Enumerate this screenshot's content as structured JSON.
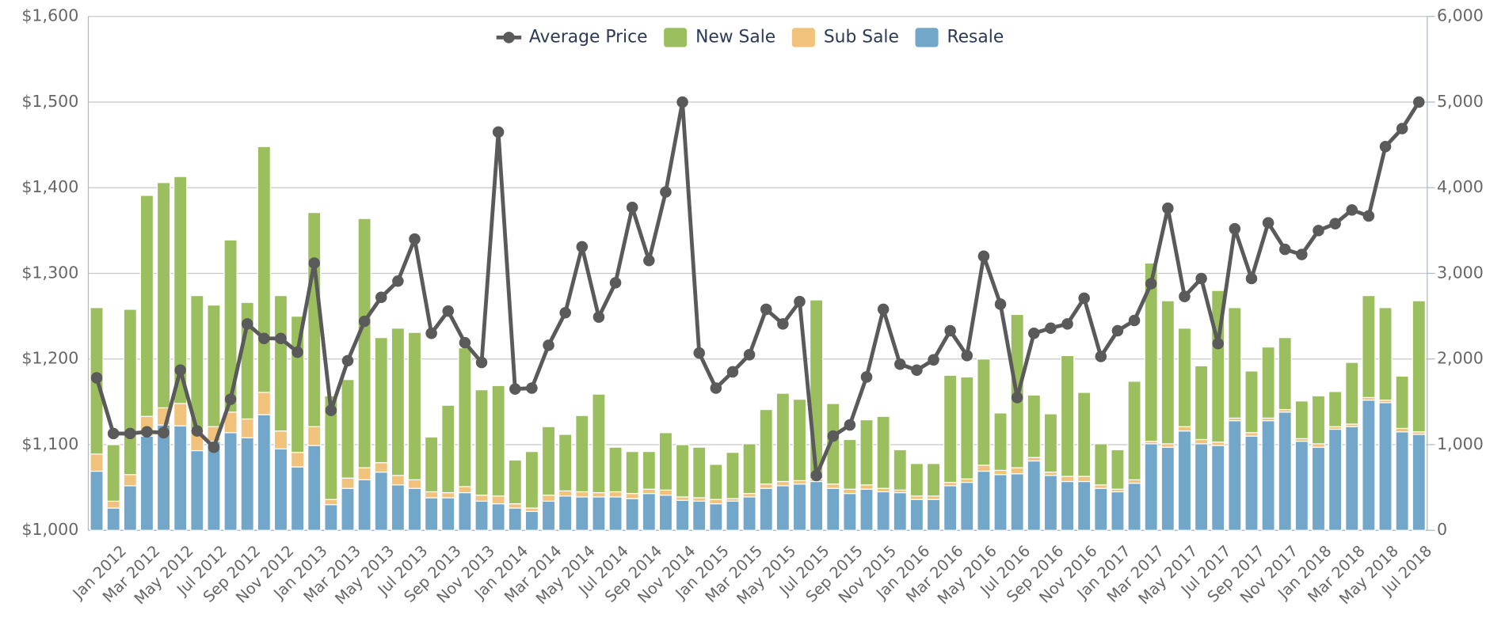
{
  "chart_data": {
    "type": "bar",
    "stacked": true,
    "grid": true,
    "legend": "top",
    "categories": [
      null,
      "Jan 2012",
      null,
      "Mar 2012",
      null,
      "May 2012",
      null,
      "Jul 2012",
      null,
      "Sep 2012",
      null,
      "Nov 2012",
      null,
      "Jan 2013",
      null,
      "Mar 2013",
      null,
      "May 2013",
      null,
      "Jul 2013",
      null,
      "Sep 2013",
      null,
      "Nov 2013",
      null,
      "Jan 2014",
      null,
      "Mar 2014",
      null,
      "May 2014",
      null,
      "Jul 2014",
      null,
      "Sep 2014",
      null,
      "Nov 2014",
      null,
      "Jan 2015",
      null,
      "Mar 2015",
      null,
      "May 2015",
      null,
      "Jul 2015",
      null,
      "Sep 2015",
      null,
      "Nov 2015",
      null,
      "Jan 2016",
      null,
      "Mar 2016",
      null,
      "May 2016",
      null,
      "Jul 2016",
      null,
      "Sep 2016",
      null,
      "Nov 2016",
      null,
      "Jan 2017",
      null,
      "Mar 2017",
      null,
      "May 2017",
      null,
      "Jul 2017",
      null,
      "Sep 2017",
      null,
      "Nov 2017",
      null,
      "Jan 2018",
      null,
      "Mar 2018",
      null,
      "May 2018",
      null,
      "Jul 2018"
    ],
    "ylim": [
      1000,
      1600
    ],
    "yticks": [
      {
        "value": 1000,
        "label": "$1,000"
      },
      {
        "value": 1100,
        "label": "$1,100"
      },
      {
        "value": 1200,
        "label": "$1,200"
      },
      {
        "value": 1300,
        "label": "$1,300"
      },
      {
        "value": 1400,
        "label": "$1,400"
      },
      {
        "value": 1500,
        "label": "$1,500"
      },
      {
        "value": 1600,
        "label": "$1,600"
      }
    ],
    "y2lim": [
      0,
      6000
    ],
    "y2ticks": [
      0,
      {
        "value": 1000,
        "label": "1,000"
      },
      {
        "value": 2000,
        "label": "2,000"
      },
      {
        "value": 3000,
        "label": "3,000"
      },
      {
        "value": 4000,
        "label": "4,000"
      },
      {
        "value": 5000,
        "label": "5,000"
      },
      {
        "value": 6000,
        "label": "6,000"
      }
    ],
    "series": [
      {
        "name": "Average Price",
        "type": "line",
        "axis": "y",
        "color": "#5a5a5a",
        "values": [
          1178,
          1113,
          1113,
          1115,
          1114,
          1187,
          1116,
          1097,
          1153,
          1241,
          1224,
          1224,
          1208,
          1312,
          1140,
          1198,
          1244,
          1272,
          1291,
          1340,
          1230,
          1256,
          1219,
          1196,
          1465,
          1165,
          1166,
          1216,
          1254,
          1331,
          1249,
          1289,
          1377,
          1315,
          1395,
          1500,
          1207,
          1166,
          1185,
          1205,
          1258,
          1241,
          1267,
          1064,
          1110,
          1123,
          1179,
          1258,
          1194,
          1187,
          1199,
          1233,
          1204,
          1320,
          1264,
          1155,
          1230,
          1236,
          1241,
          1271,
          1203,
          1233,
          1245,
          1288,
          1376,
          1273,
          1294,
          1218,
          1352,
          1294,
          1359,
          1328,
          1322,
          1350,
          1358,
          1374,
          1367,
          1448,
          1469,
          1500
        ]
      },
      {
        "name": "New Sale",
        "type": "bar",
        "axis": "y2",
        "color": "#9bbf5f",
        "values": [
          1710,
          660,
          1930,
          2580,
          2630,
          2650,
          1560,
          1420,
          2010,
          1360,
          2870,
          1580,
          1590,
          2500,
          1210,
          1150,
          2910,
          1460,
          1720,
          1720,
          640,
          1020,
          1620,
          1230,
          1290,
          510,
          660,
          800,
          660,
          890,
          1150,
          520,
          490,
          440,
          670,
          610,
          590,
          410,
          540,
          580,
          870,
          1030,
          950,
          2090,
          940,
          580,
          760,
          840,
          470,
          380,
          380,
          1250,
          1190,
          1240,
          670,
          1790,
          730,
          680,
          1410,
          980,
          480,
          460,
          1150,
          2080,
          1670,
          1150,
          860,
          1770,
          1290,
          720,
          830,
          840,
          440,
          560,
          410,
          720,
          1190,
          1080,
          610,
          1530
        ]
      },
      {
        "name": "Sub Sale",
        "type": "bar",
        "axis": "y2",
        "color": "#f0c27b",
        "values": [
          200,
          80,
          130,
          230,
          200,
          260,
          250,
          170,
          240,
          220,
          260,
          210,
          170,
          220,
          60,
          120,
          140,
          110,
          110,
          100,
          70,
          60,
          70,
          70,
          90,
          50,
          40,
          70,
          60,
          60,
          50,
          60,
          60,
          50,
          60,
          40,
          40,
          50,
          30,
          40,
          50,
          50,
          40,
          30,
          50,
          50,
          50,
          40,
          30,
          40,
          40,
          40,
          40,
          70,
          50,
          70,
          40,
          40,
          60,
          60,
          40,
          30,
          40,
          30,
          40,
          50,
          50,
          40,
          30,
          40,
          30,
          30,
          30,
          40,
          30,
          30,
          30,
          30,
          40,
          30
        ]
      },
      {
        "name": "Resale",
        "type": "bar",
        "axis": "y2",
        "color": "#72a7c9",
        "values": [
          690,
          260,
          520,
          1100,
          1230,
          1220,
          930,
          1040,
          1140,
          1080,
          1350,
          950,
          740,
          990,
          300,
          490,
          590,
          680,
          530,
          490,
          380,
          380,
          440,
          340,
          310,
          260,
          220,
          340,
          400,
          390,
          390,
          390,
          370,
          430,
          410,
          350,
          340,
          310,
          340,
          390,
          490,
          520,
          540,
          570,
          490,
          430,
          480,
          450,
          440,
          360,
          360,
          520,
          560,
          690,
          650,
          660,
          810,
          640,
          570,
          570,
          490,
          450,
          550,
          1010,
          970,
          1160,
          1010,
          990,
          1280,
          1100,
          1280,
          1380,
          1040,
          970,
          1180,
          1210,
          1520,
          1490,
          1150,
          1120
        ]
      }
    ]
  }
}
